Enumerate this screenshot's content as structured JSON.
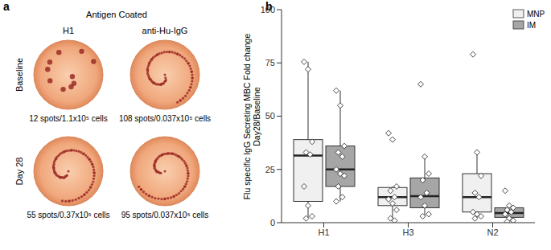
{
  "panel_a": {
    "label": "a",
    "title": "Antigen Coated",
    "columns": [
      "H1",
      "anti-Hu-IgG"
    ],
    "rows": [
      "Baseline",
      "Day 28"
    ],
    "captions": [
      [
        "12 spots/1.1x10⁵ cells",
        "108 spots/0.037x10⁵ cells"
      ],
      [
        "55 spots/0.37x10⁵ cells",
        "95 spots/0.037x10⁵ cells"
      ]
    ]
  },
  "chart_data": {
    "type": "box",
    "label": "b",
    "y_label": [
      "Flu specific IgG Secreting MBC Fold change",
      "Day28/Baseline"
    ],
    "categories": [
      "H1",
      "H3",
      "N2"
    ],
    "ylim": [
      0,
      100
    ],
    "yticks": [
      0,
      25,
      50,
      75,
      100
    ],
    "legend": "top-right",
    "series": [
      {
        "name": "MNP",
        "color": "#f0f0f0",
        "boxes": [
          {
            "min": 2,
            "q1": 10,
            "median": 31.5,
            "q3": 39,
            "max": 75.5
          },
          {
            "min": 1,
            "q1": 8,
            "median": 12,
            "q3": 16.5,
            "max": 17
          },
          {
            "min": 2,
            "q1": 5,
            "median": 12,
            "q3": 23,
            "max": 33
          }
        ],
        "points": [
          [
            75.5,
            72,
            38,
            33,
            32,
            17,
            8,
            3,
            2
          ],
          [
            42,
            39,
            17,
            15,
            12,
            11,
            9,
            6,
            2,
            1
          ],
          [
            79,
            33,
            22,
            14,
            12,
            5,
            4,
            3,
            2
          ]
        ]
      },
      {
        "name": "IM",
        "color": "#a6a6a6",
        "boxes": [
          {
            "min": 10,
            "q1": 17,
            "median": 25,
            "q3": 36,
            "max": 62
          },
          {
            "min": 3,
            "q1": 7,
            "median": 12.5,
            "q3": 21,
            "max": 31
          },
          {
            "min": 0.5,
            "q1": 2.5,
            "median": 4.5,
            "q3": 7,
            "max": 8
          }
        ],
        "points": [
          [
            62,
            55,
            36,
            33,
            31,
            25,
            23,
            22,
            17,
            12,
            10
          ],
          [
            65,
            31,
            23,
            20,
            14,
            12,
            8,
            4,
            3
          ],
          [
            15,
            8,
            7,
            6,
            5,
            4,
            2,
            1,
            0.5
          ]
        ]
      }
    ]
  }
}
